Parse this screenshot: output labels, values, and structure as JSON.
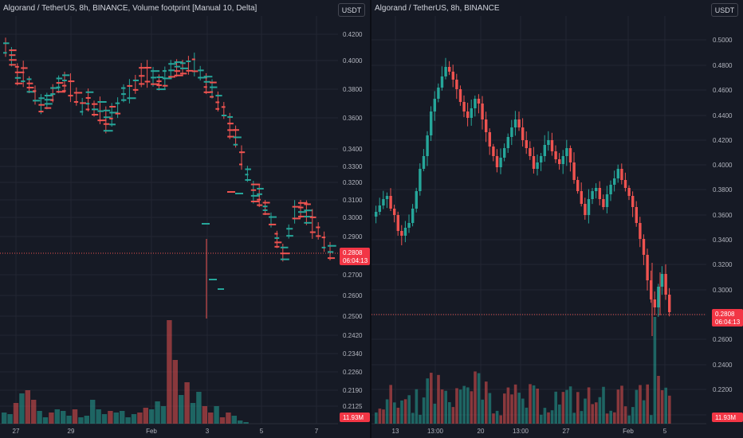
{
  "left": {
    "legend": "Algorand / TetherUS, 8h, BINANCE, Volume footprint [Manual 10, Delta]",
    "currency": "USDT",
    "y_ticks": [
      "0.4200",
      "0.4000",
      "0.3800",
      "0.3600",
      "0.3400",
      "0.3300",
      "0.3200",
      "0.3100",
      "0.3000",
      "0.2900",
      "0.2700",
      "0.2600",
      "0.2500",
      "0.2420",
      "0.2340",
      "0.2260",
      "0.2190",
      "0.2125"
    ],
    "x_ticks": [
      "27",
      "29",
      "Feb",
      "3",
      "5",
      "7"
    ],
    "price_label": "0.2808",
    "countdown": "06:04:13",
    "volume_label": "11.93M"
  },
  "right": {
    "legend": "Algorand / TetherUS, 8h, BINANCE",
    "currency": "USDT",
    "y_ticks": [
      "0.5000",
      "0.4800",
      "0.4600",
      "0.4400",
      "0.4200",
      "0.4000",
      "0.3800",
      "0.3600",
      "0.3400",
      "0.3200",
      "0.3000",
      "0.2800",
      "0.2600",
      "0.2400",
      "0.2200",
      "0.2000"
    ],
    "x_ticks": [
      "13",
      "13:00",
      "20",
      "13:00",
      "27",
      "Feb",
      "5"
    ],
    "price_label": "0.2808",
    "countdown": "06:04:13",
    "volume_label": "11.93M"
  },
  "colors": {
    "up": "#26a69a",
    "down": "#ef5350",
    "bg": "#161a25",
    "grid": "#232632"
  }
}
